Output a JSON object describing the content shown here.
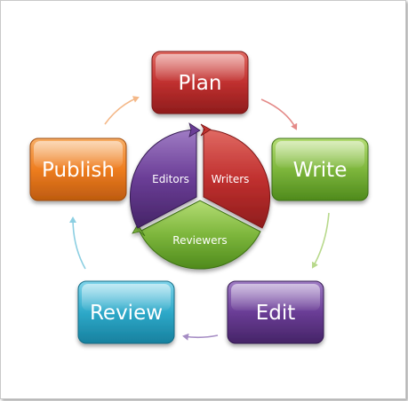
{
  "cycle": {
    "steps": [
      {
        "id": "plan",
        "label": "Plan",
        "color": "#c0302f"
      },
      {
        "id": "write",
        "label": "Write",
        "color": "#7db63c"
      },
      {
        "id": "edit",
        "label": "Edit",
        "color": "#6a3d96"
      },
      {
        "id": "review",
        "label": "Review",
        "color": "#2ea9c9"
      },
      {
        "id": "publish",
        "label": "Publish",
        "color": "#ee7d20"
      }
    ]
  },
  "roles": {
    "segments": [
      {
        "id": "writers",
        "label": "Writers",
        "color": "#c0302f"
      },
      {
        "id": "reviewers",
        "label": "Reviewers",
        "color": "#7db63c"
      },
      {
        "id": "editors",
        "label": "Editors",
        "color": "#6a3d96"
      }
    ]
  }
}
